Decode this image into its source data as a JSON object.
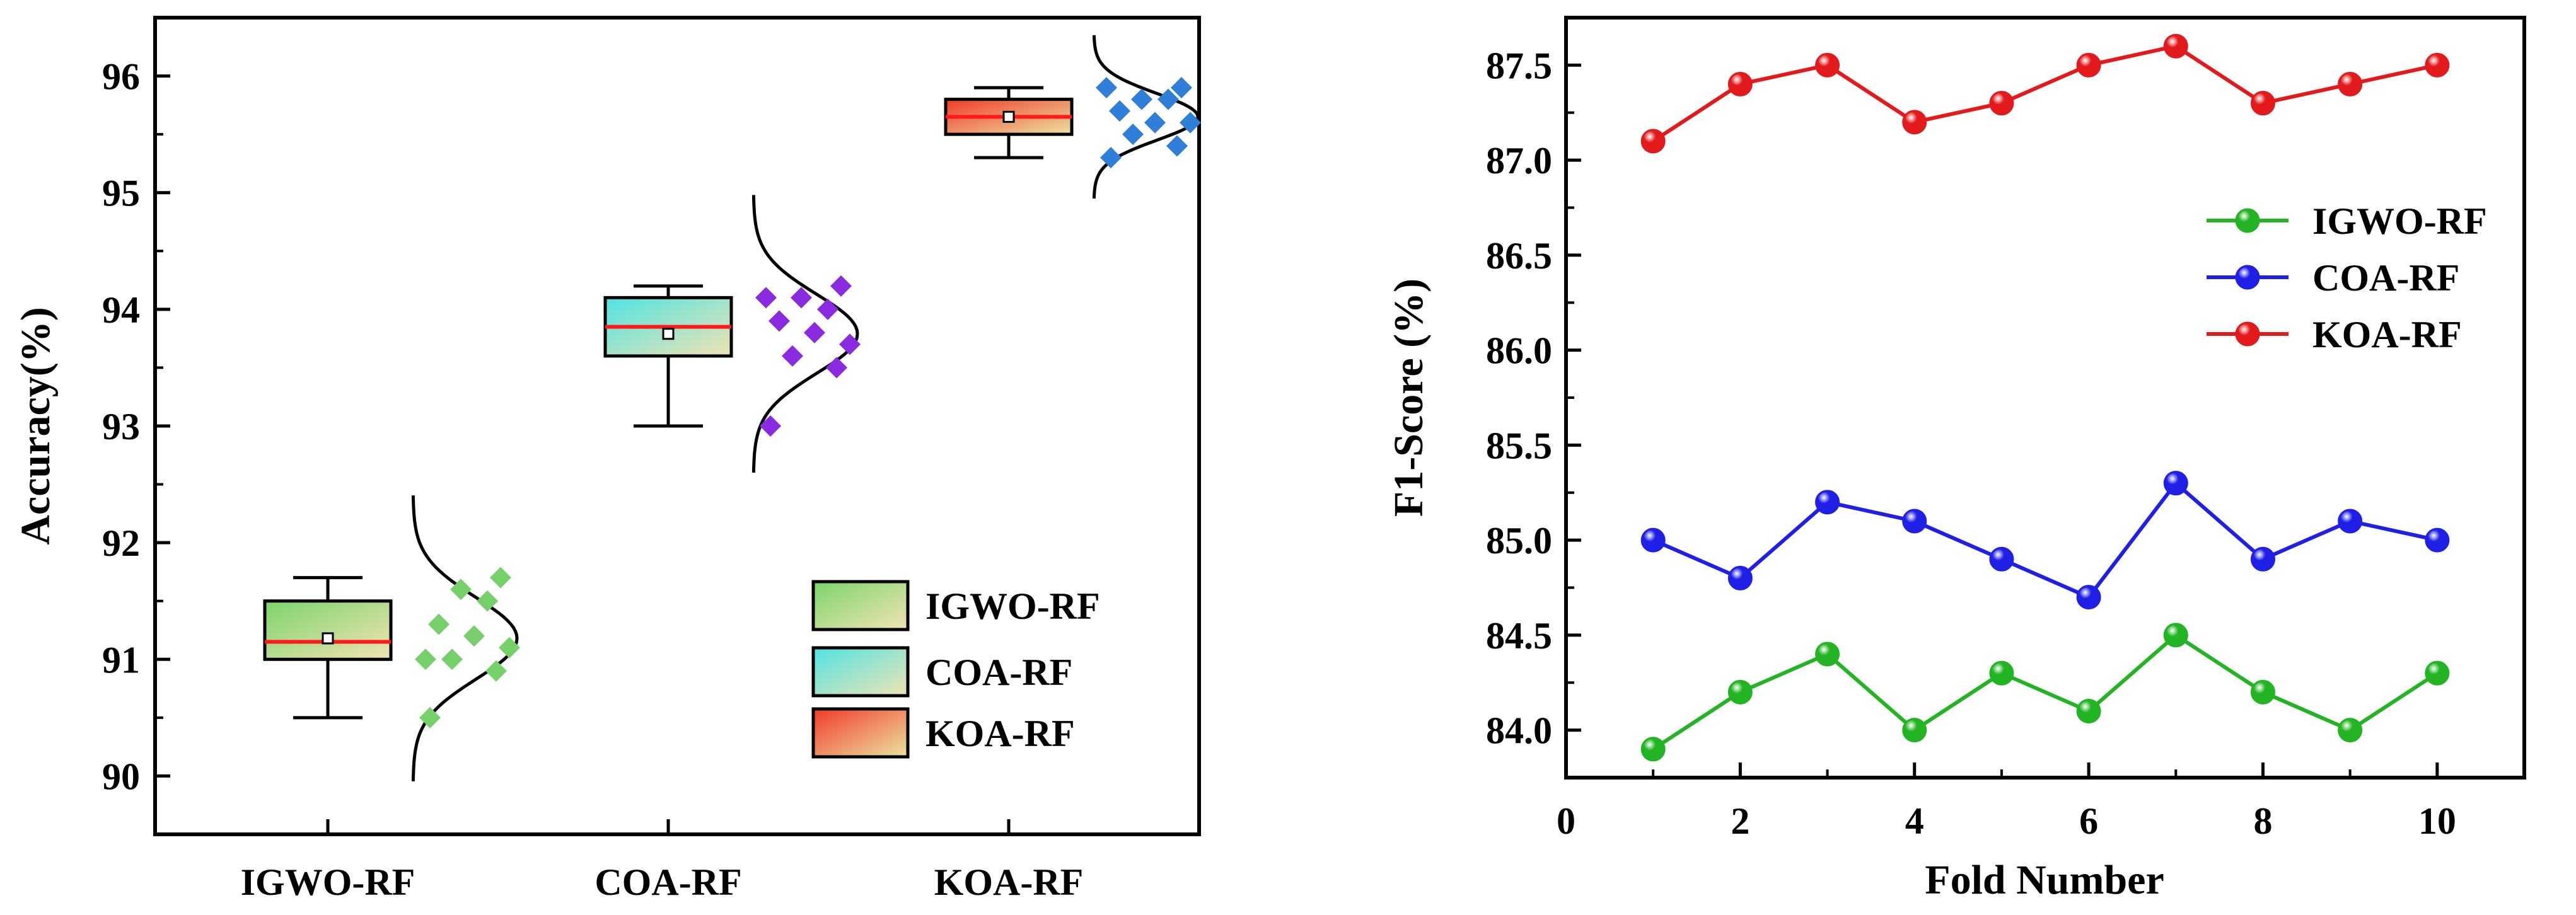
{
  "chart_data": [
    {
      "type": "box",
      "title": "",
      "xlabel": "",
      "ylabel": "Accuracy(%)",
      "ylim": [
        89.5,
        96.5
      ],
      "yticks": [
        "90",
        "91",
        "92",
        "93",
        "94",
        "95",
        "96"
      ],
      "categories": [
        "IGWO-RF",
        "COA-RF",
        "KOA-RF"
      ],
      "legend_position": "bottom-right",
      "legend": [
        "IGWO-RF",
        "COA-RF",
        "KOA-RF"
      ],
      "series": [
        {
          "name": "IGWO-RF",
          "whisker_low": 90.5,
          "q1": 91.0,
          "median": 91.15,
          "mean": 91.18,
          "q3": 91.5,
          "whisker_high": 91.7,
          "points": [
            90.5,
            90.9,
            91.0,
            91.1,
            91.2,
            91.3,
            91.5,
            91.6,
            91.7,
            91.0
          ],
          "dist_mean": 91.18,
          "dist_sd": 0.35,
          "fill_top": "#7bd46c",
          "fill_bottom": "#f1e3b4",
          "point_color": "#77d16a"
        },
        {
          "name": "COA-RF",
          "whisker_low": 93.0,
          "q1": 93.6,
          "median": 93.85,
          "mean": 93.79,
          "q3": 94.1,
          "whisker_high": 94.2,
          "points": [
            93.0,
            93.5,
            93.6,
            93.7,
            93.8,
            93.9,
            94.0,
            94.1,
            94.2,
            94.1
          ],
          "dist_mean": 93.79,
          "dist_sd": 0.34,
          "fill_top": "#4fe3e3",
          "fill_bottom": "#f0e3b3",
          "point_color": "#8a2be2"
        },
        {
          "name": "KOA-RF",
          "whisker_low": 95.3,
          "q1": 95.5,
          "median": 95.65,
          "mean": 95.65,
          "q3": 95.8,
          "whisker_high": 95.9,
          "points": [
            95.3,
            95.4,
            95.5,
            95.6,
            95.6,
            95.7,
            95.8,
            95.8,
            95.9,
            95.9
          ],
          "dist_mean": 95.65,
          "dist_sd": 0.2,
          "fill_top": "#f03a2a",
          "fill_bottom": "#ece29e",
          "point_color": "#2f7fd9"
        }
      ]
    },
    {
      "type": "line",
      "title": "",
      "xlabel": "Fold Number",
      "ylabel": "F1-Score (%)",
      "xlim": [
        0,
        11
      ],
      "ylim": [
        83.75,
        87.75
      ],
      "xticks": [
        "0",
        "2",
        "4",
        "6",
        "8",
        "10"
      ],
      "yticks": [
        "84.0",
        "84.5",
        "85.0",
        "85.5",
        "86.0",
        "86.5",
        "87.0",
        "87.5"
      ],
      "legend_position": "top-right",
      "x": [
        1,
        2,
        3,
        4,
        5,
        6,
        7,
        8,
        9,
        10
      ],
      "series": [
        {
          "name": "IGWO-RF",
          "color": "#22b422",
          "values": [
            83.9,
            84.2,
            84.4,
            84.0,
            84.3,
            84.1,
            84.5,
            84.2,
            84.0,
            84.3
          ]
        },
        {
          "name": "COA-RF",
          "color": "#1f1fe6",
          "values": [
            85.0,
            84.8,
            85.2,
            85.1,
            84.9,
            84.7,
            85.3,
            84.9,
            85.1,
            85.0
          ]
        },
        {
          "name": "KOA-RF",
          "color": "#e31a1c",
          "values": [
            87.1,
            87.4,
            87.5,
            87.2,
            87.3,
            87.5,
            87.6,
            87.3,
            87.4,
            87.5
          ]
        }
      ]
    }
  ]
}
